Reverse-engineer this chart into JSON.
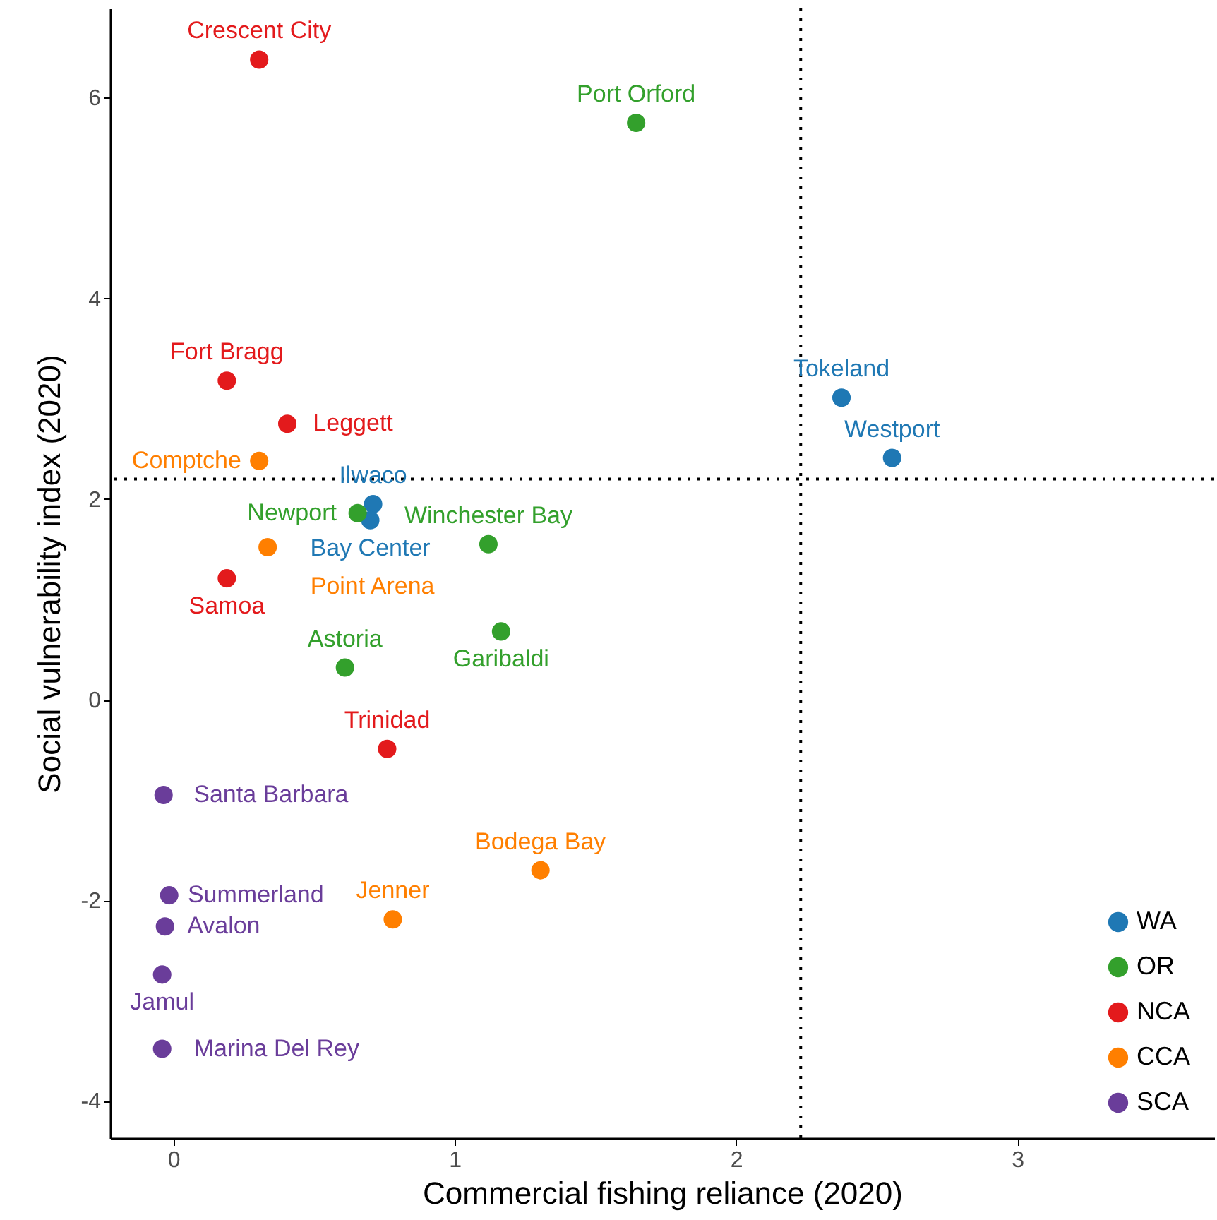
{
  "chart_data": {
    "type": "scatter",
    "xlabel": "Commercial fishing reliance (2020)",
    "ylabel": "Social vulnerability index (2020)",
    "xlim": [
      -0.225,
      3.7
    ],
    "ylim": [
      -4.37,
      6.89
    ],
    "xticks": [
      0,
      1,
      2,
      3
    ],
    "yticks": [
      -4,
      -2,
      0,
      2,
      4,
      6
    ],
    "grid": false,
    "legend": "bottom right",
    "marker": "circle",
    "series": [
      {
        "name": "WA",
        "color": "#1f78b4",
        "x": [
          2.375,
          2.555,
          0.71,
          0.7
        ],
        "values": [
          3.01,
          2.41,
          1.95,
          1.79
        ],
        "value_labels": [
          "Tokeland",
          "Westport",
          "Ilwaco",
          "Bay Center"
        ]
      },
      {
        "name": "OR",
        "color": "#33a02c",
        "x": [
          1.645,
          0.655,
          1.12,
          1.165,
          0.61
        ],
        "values": [
          5.75,
          1.86,
          1.55,
          0.68,
          0.32
        ],
        "value_labels": [
          "Port Orford",
          "Newport",
          "Winchester Bay",
          "Garibaldi",
          "Astoria"
        ]
      },
      {
        "name": "NCA",
        "color": "#e31a1c",
        "x": [
          0.305,
          0.19,
          0.405,
          0.19,
          0.76
        ],
        "values": [
          6.38,
          3.18,
          2.75,
          1.21,
          -0.49
        ],
        "value_labels": [
          "Crescent City",
          "Fort Bragg",
          "Leggett",
          "Samoa",
          "Trinidad"
        ]
      },
      {
        "name": "CCA",
        "color": "#ff7f00",
        "x": [
          0.305,
          0.335,
          1.305,
          0.78
        ],
        "values": [
          2.38,
          1.52,
          -1.7,
          -2.19
        ],
        "value_labels": [
          "Comptche",
          "Point Arena",
          "Bodega Bay",
          "Jenner"
        ]
      },
      {
        "name": "SCA",
        "color": "#6a3d9a",
        "x": [
          -0.035,
          -0.015,
          -0.03,
          -0.04,
          -0.04
        ],
        "values": [
          -0.95,
          -1.95,
          -2.26,
          -2.74,
          -3.48
        ],
        "value_labels": [
          "Santa Barbara",
          "Summerland",
          "Avalon",
          "Jamul",
          "Marina Del Rey"
        ]
      }
    ],
    "ref_lines": [
      {
        "axis": "x",
        "value": 2.23,
        "line_style": "dotted"
      },
      {
        "axis": "y",
        "value": 2.2,
        "line_style": "dotted"
      }
    ]
  }
}
